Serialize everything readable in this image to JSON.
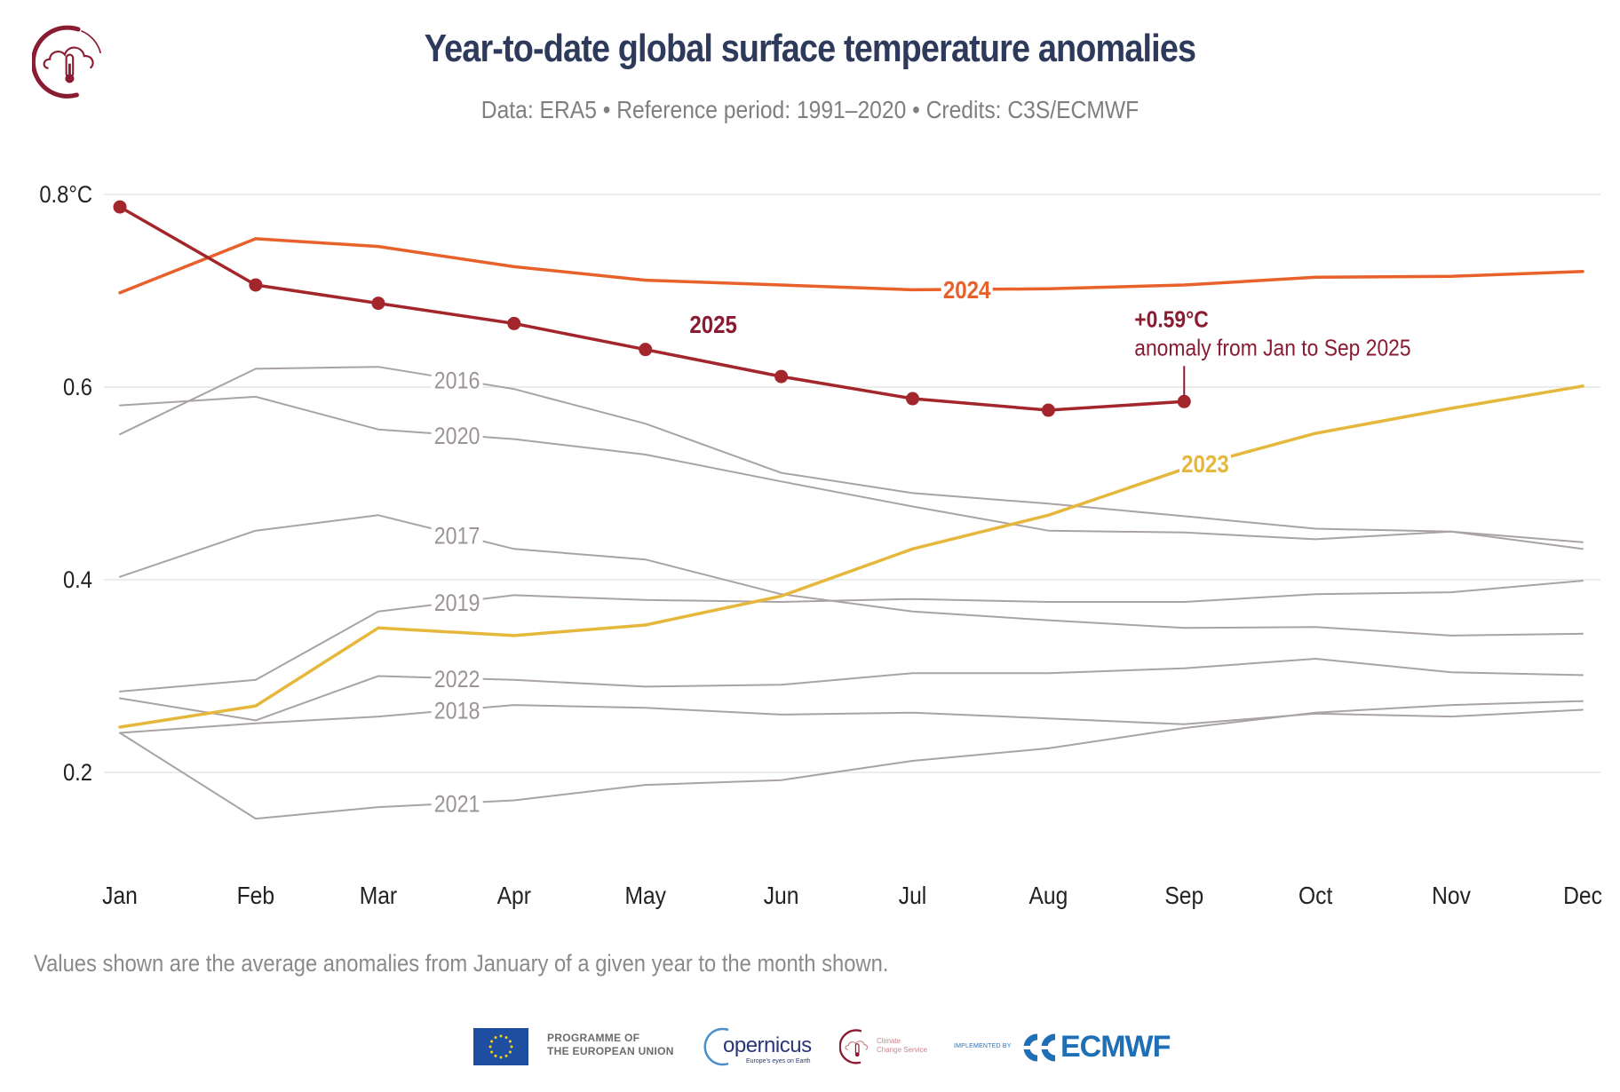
{
  "header": {
    "title": "Year-to-date global surface temperature anomalies",
    "subtitle": "Data: ERA5 • Reference period: 1991–2020 • Credits: C3S/ECMWF",
    "logo_icon": "c3s-cloud-thermometer-icon"
  },
  "footnote": "Values shown are the average anomalies from January of a given year to the month shown.",
  "footer": {
    "eu_line1": "PROGRAMME OF",
    "eu_line2": "THE EUROPEAN UNION",
    "copernicus": "opernicus",
    "copernicus_tagline": "Europe's eyes on Earth",
    "c3s_line1": "Climate",
    "c3s_line2": "Change Service",
    "implemented_by": "IMPLEMENTED BY",
    "ecmwf": "ECMWF"
  },
  "colors": {
    "title": "#2e3a5c",
    "y2025": "#a3262d",
    "y2025_label": "#8a1c32",
    "y2024": "#e8602a",
    "y2023": "#e5b73b",
    "other_years": "#aaa3a3",
    "other_label": "#9c9494",
    "grid": "#e6e6e6"
  },
  "chart_data": {
    "type": "line",
    "title": "Year-to-date global surface temperature anomalies",
    "subtitle": "Data: ERA5 • Reference period: 1991–2020 • Credits: C3S/ECMWF",
    "xlabel": "",
    "ylabel": "",
    "categories": [
      "Jan",
      "Feb",
      "Mar",
      "Apr",
      "May",
      "Jun",
      "Jul",
      "Aug",
      "Sep",
      "Oct",
      "Nov",
      "Dec"
    ],
    "day_of_year_offsets": [
      0,
      31,
      59,
      90,
      120,
      151,
      181,
      212,
      243,
      273,
      304,
      334
    ],
    "ylim": [
      0.1,
      0.8
    ],
    "yticks": [
      0.2,
      0.4,
      0.6,
      0.8
    ],
    "ytick_labels": [
      "0.2",
      "0.4",
      "0.6",
      "0.8°C"
    ],
    "grid": true,
    "legend": "inline-labels",
    "series": [
      {
        "name": "2016",
        "style": "background",
        "values": [
          0.551,
          0.619,
          0.621,
          0.598,
          0.562,
          0.511,
          0.49,
          0.479,
          0.466,
          0.453,
          0.45,
          0.439
        ]
      },
      {
        "name": "2020",
        "style": "background",
        "values": [
          0.581,
          0.59,
          0.556,
          0.546,
          0.53,
          0.502,
          0.476,
          0.451,
          0.449,
          0.442,
          0.45,
          0.432
        ]
      },
      {
        "name": "2017",
        "style": "background",
        "values": [
          0.403,
          0.451,
          0.467,
          0.432,
          0.421,
          0.385,
          0.367,
          0.358,
          0.35,
          0.351,
          0.342,
          0.344
        ]
      },
      {
        "name": "2019",
        "style": "background",
        "values": [
          0.284,
          0.296,
          0.367,
          0.384,
          0.379,
          0.377,
          0.38,
          0.377,
          0.377,
          0.385,
          0.387,
          0.399
        ]
      },
      {
        "name": "2022",
        "style": "background",
        "values": [
          0.277,
          0.254,
          0.3,
          0.296,
          0.289,
          0.291,
          0.303,
          0.303,
          0.308,
          0.318,
          0.304,
          0.301
        ]
      },
      {
        "name": "2018",
        "style": "background",
        "values": [
          0.241,
          0.251,
          0.258,
          0.27,
          0.267,
          0.26,
          0.262,
          0.256,
          0.25,
          0.261,
          0.258,
          0.265
        ]
      },
      {
        "name": "2021",
        "style": "background",
        "values": [
          0.241,
          0.152,
          0.164,
          0.171,
          0.187,
          0.192,
          0.212,
          0.225,
          0.246,
          0.262,
          0.27,
          0.274
        ]
      },
      {
        "name": "2023",
        "style": "highlight-yellow",
        "values": [
          0.247,
          0.269,
          0.35,
          0.342,
          0.353,
          0.383,
          0.432,
          0.467,
          0.515,
          0.552,
          0.578,
          0.601
        ]
      },
      {
        "name": "2024",
        "style": "highlight-orange",
        "values": [
          0.698,
          0.754,
          0.746,
          0.725,
          0.711,
          0.706,
          0.701,
          0.702,
          0.706,
          0.714,
          0.715,
          0.72
        ]
      },
      {
        "name": "2025",
        "style": "current-with-markers",
        "values": [
          0.787,
          0.706,
          0.687,
          0.666,
          0.639,
          0.611,
          0.588,
          0.576,
          0.585
        ]
      }
    ],
    "annotations": [
      {
        "series": "2025",
        "month": "Sep",
        "value_text": "+0.59°C",
        "text": "anomaly from Jan to Sep 2025"
      }
    ]
  }
}
